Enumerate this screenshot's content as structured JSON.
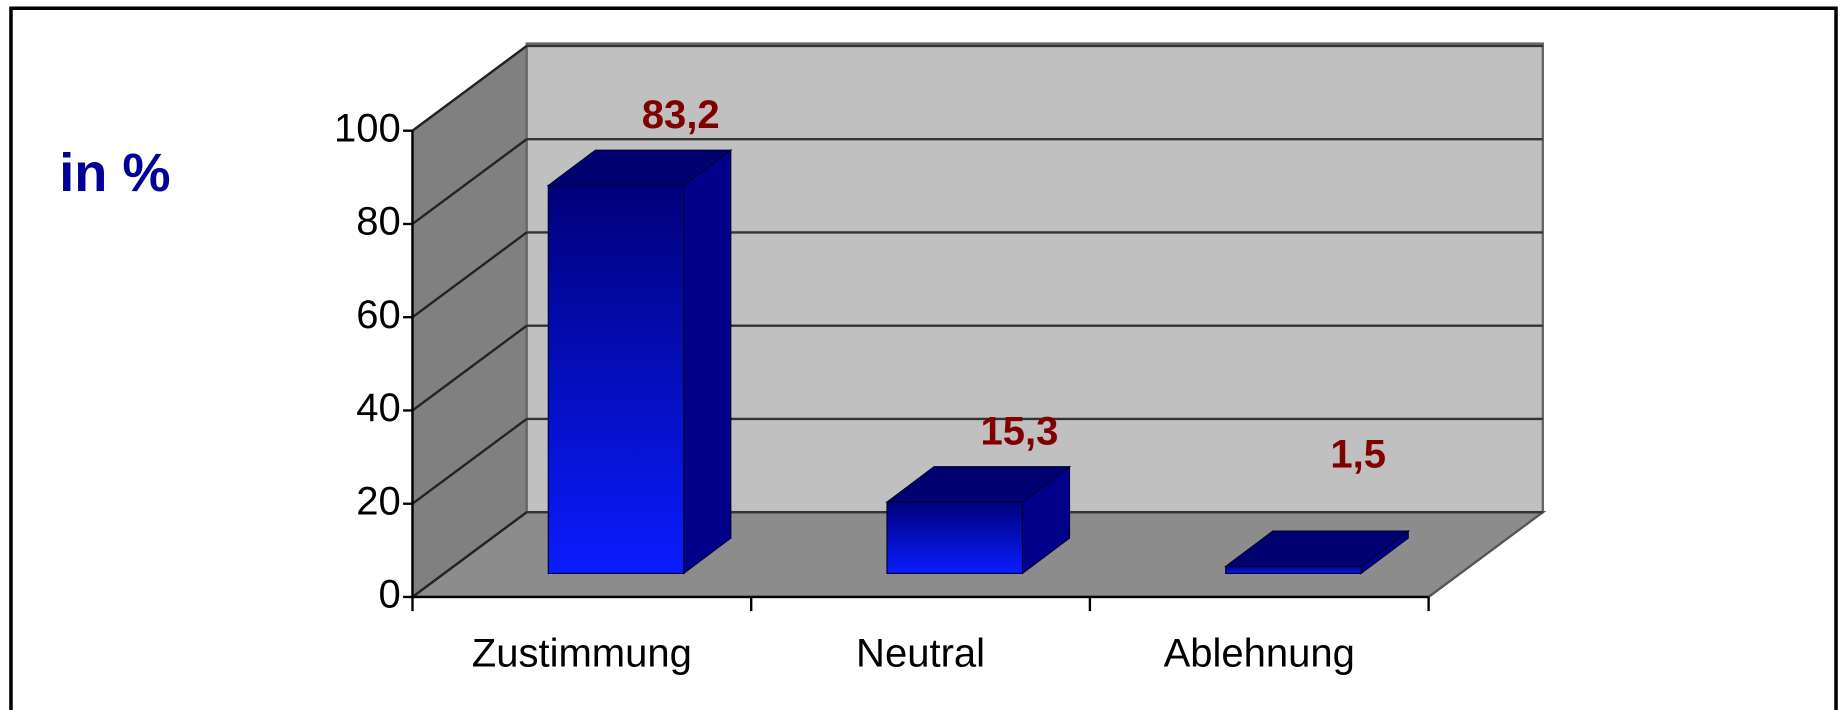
{
  "chart_data": {
    "type": "bar3d",
    "y_axis_label": "in %",
    "categories": [
      "Zustimmung",
      "Neutral",
      "Ablehnung"
    ],
    "values": [
      83.2,
      15.3,
      1.5
    ],
    "value_labels": [
      "83,2",
      "15,3",
      "1,5"
    ],
    "color": "#0000ff",
    "ylim": [
      0,
      100
    ],
    "yticks": [
      0,
      20,
      40,
      60,
      80,
      100
    ],
    "grid": true
  }
}
